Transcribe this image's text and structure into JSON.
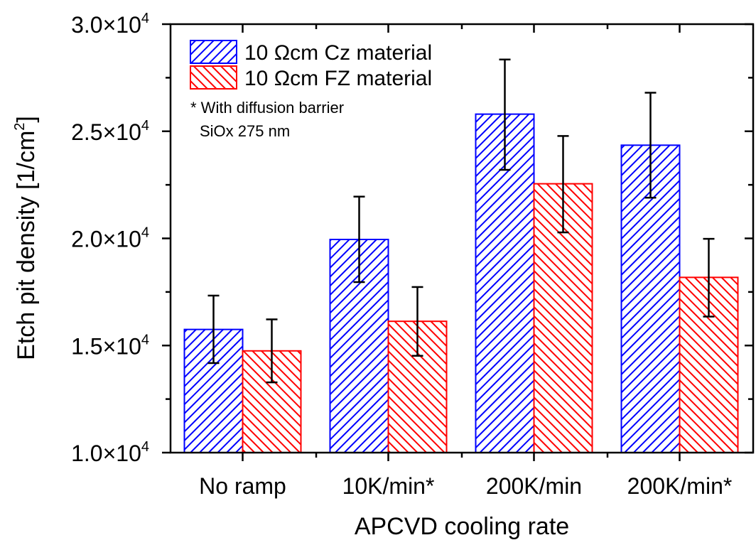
{
  "chart_data": {
    "type": "bar",
    "title": "",
    "xlabel": "APCVD cooling rate",
    "ylabel": "Etch pit density [1/cm",
    "ylabel_sup": "2",
    "ylabel_suffix": "]",
    "ylim": [
      10000,
      30000
    ],
    "y_major_ticks": [
      10000,
      15000,
      20000,
      25000,
      30000
    ],
    "y_tick_labels": [
      {
        "mantissa": "1.0×10",
        "exp": "4"
      },
      {
        "mantissa": "1.5×10",
        "exp": "4"
      },
      {
        "mantissa": "2.0×10",
        "exp": "4"
      },
      {
        "mantissa": "2.5×10",
        "exp": "4"
      },
      {
        "mantissa": "3.0×10",
        "exp": "4"
      }
    ],
    "categories": [
      "No ramp",
      "10K/min*",
      "200K/min",
      "200K/min*"
    ],
    "series": [
      {
        "name": "10 Ωcm Cz material",
        "color": "#0000ff",
        "hatch": "forward",
        "values": [
          15750,
          19950,
          25800,
          24350
        ],
        "error_upper": [
          17330,
          21950,
          28350,
          26800
        ],
        "error_lower": [
          14180,
          17960,
          23200,
          21900
        ]
      },
      {
        "name": "10 Ωcm FZ material",
        "color": "#ff0000",
        "hatch": "backward",
        "values": [
          14750,
          16130,
          22550,
          18180
        ],
        "error_upper": [
          16220,
          17730,
          24780,
          19980
        ],
        "error_lower": [
          13280,
          14520,
          20280,
          16350
        ]
      }
    ],
    "legend_position": "top-left",
    "annotation": [
      "* With diffusion barrier",
      "SiOx 275 nm"
    ],
    "grid": false
  }
}
